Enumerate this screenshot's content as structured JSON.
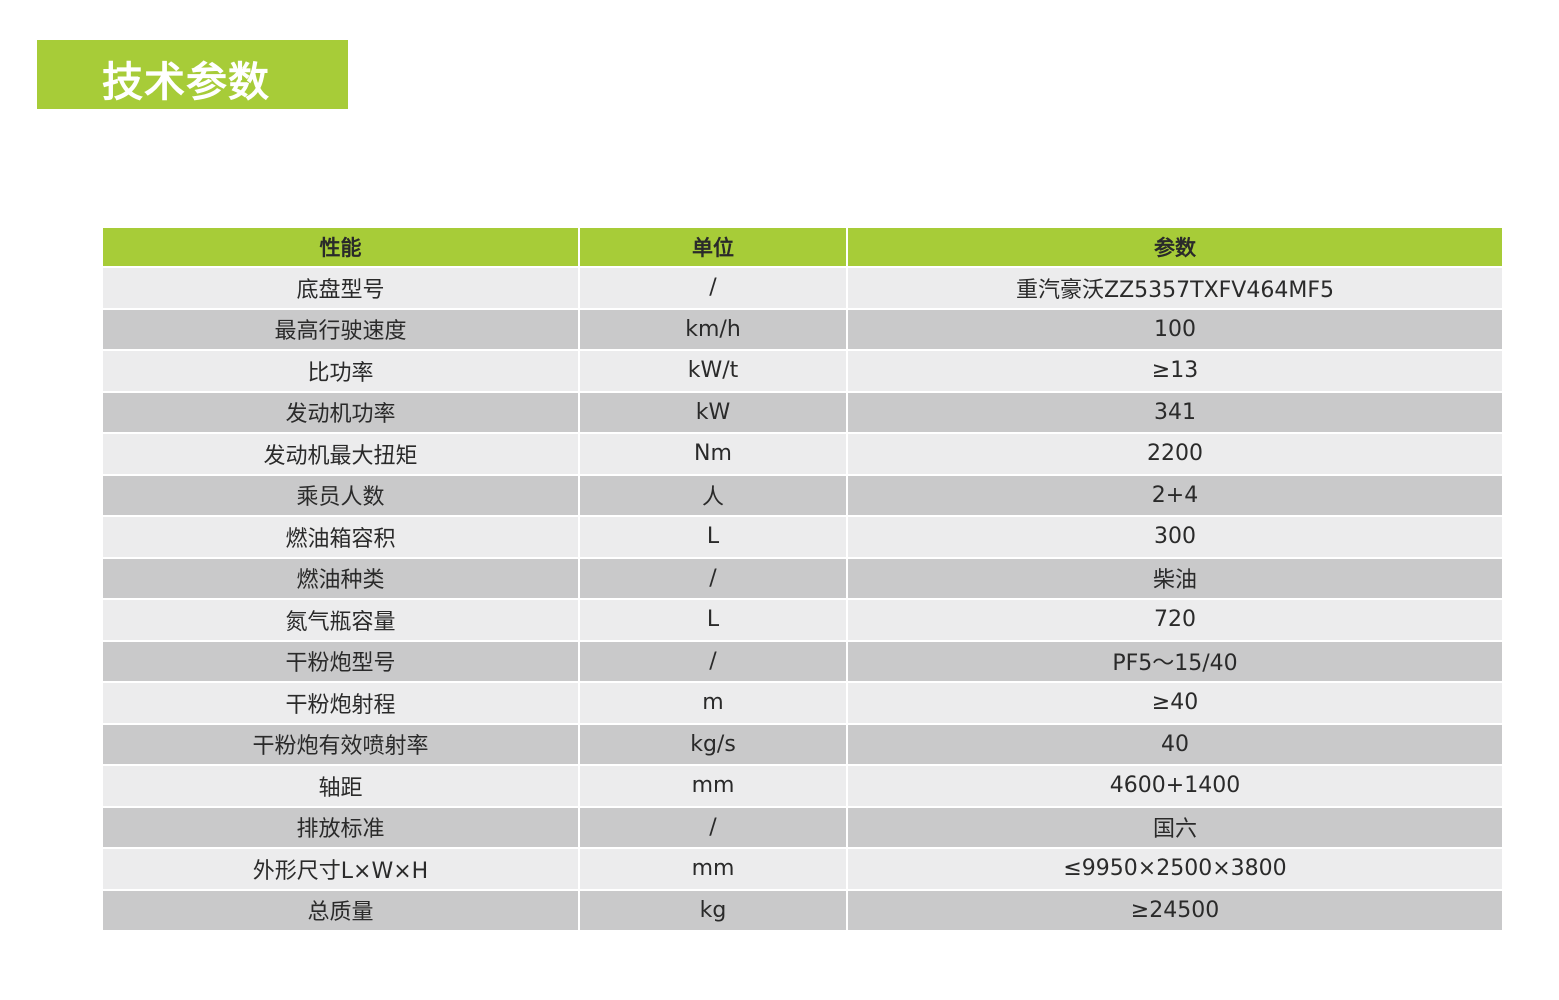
{
  "title": "技术参数",
  "colors": {
    "accent": "#a7cc38",
    "row_light": "#ececed",
    "row_dark": "#c9c9ca"
  },
  "table": {
    "headers": [
      "性能",
      "单位",
      "参数"
    ],
    "rows": [
      [
        "底盘型号",
        "/",
        "重汽豪沃ZZ5357TXFV464MF5"
      ],
      [
        "最高行驶速度",
        "km/h",
        "100"
      ],
      [
        "比功率",
        "kW/t",
        "≥13"
      ],
      [
        "发动机功率",
        "kW",
        "341"
      ],
      [
        "发动机最大扭矩",
        "Nm",
        "2200"
      ],
      [
        "乘员人数",
        "人",
        "2+4"
      ],
      [
        "燃油箱容积",
        "L",
        "300"
      ],
      [
        "燃油种类",
        "/",
        "柴油"
      ],
      [
        "氮气瓶容量",
        "L",
        "720"
      ],
      [
        "干粉炮型号",
        "/",
        "PF5～15/40"
      ],
      [
        "干粉炮射程",
        "m",
        "≥40"
      ],
      [
        "干粉炮有效喷射率",
        "kg/s",
        "40"
      ],
      [
        "轴距",
        "mm",
        "4600+1400"
      ],
      [
        "排放标准",
        "/",
        "国六"
      ],
      [
        "外形尺寸L×W×H",
        "mm",
        "≤9950×2500×3800"
      ],
      [
        "总质量",
        "kg",
        "≥24500"
      ]
    ]
  }
}
